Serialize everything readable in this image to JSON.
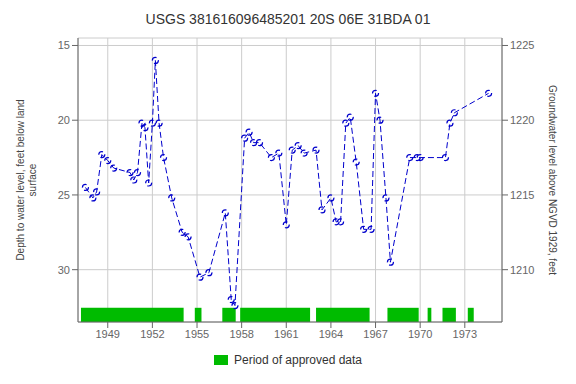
{
  "chart_data": {
    "type": "line",
    "title": "USGS 381616096485201 20S 06E 31BDA 01",
    "ylabel": "Depth to water level, feet below land\nsurface",
    "y2label": "Groundwater level above NGVD 1929, feet",
    "x": [
      1947.5,
      1948.0,
      1948.25,
      1948.6,
      1949.0,
      1949.4,
      1950.5,
      1950.75,
      1951.0,
      1951.3,
      1951.5,
      1951.75,
      1952.0,
      1952.2,
      1952.45,
      1952.75,
      1953.3,
      1954.0,
      1954.4,
      1955.2,
      1955.8,
      1956.9,
      1957.3,
      1957.55,
      1958.2,
      1958.5,
      1958.8,
      1959.2,
      1960.0,
      1960.5,
      1961.0,
      1961.4,
      1961.8,
      1962.2,
      1963.0,
      1963.4,
      1964.0,
      1964.35,
      1964.65,
      1965.0,
      1965.3,
      1965.7,
      1966.2,
      1966.7,
      1967.0,
      1967.3,
      1967.7,
      1968.0,
      1969.3,
      1969.8,
      1970.0,
      1971.7,
      1972.0,
      1972.3,
      1974.6
    ],
    "series": [
      {
        "values": [
          24.5,
          25.2,
          24.8,
          22.3,
          22.7,
          23.2,
          23.5,
          24.0,
          23.5,
          20.2,
          20.5,
          24.2,
          20.2,
          16.0,
          20.2,
          22.5,
          25.2,
          27.5,
          27.8,
          30.5,
          30.2,
          26.2,
          32.0,
          32.4,
          21.2,
          20.8,
          21.5,
          21.5,
          22.5,
          22.2,
          27.0,
          22.0,
          21.7,
          22.2,
          22.0,
          26.0,
          25.2,
          26.8,
          26.8,
          20.2,
          19.8,
          22.8,
          27.3,
          27.3,
          18.2,
          20.0,
          25.2,
          29.5,
          22.5,
          22.5,
          22.5,
          22.5,
          20.2,
          19.5,
          18.2
        ],
        "color": "#0000cc",
        "marker": "o",
        "line_style": "dashed"
      }
    ],
    "xlim": [
      1947.0,
      1975.5
    ],
    "xticks": [
      1949,
      1952,
      1955,
      1958,
      1961,
      1964,
      1967,
      1970,
      1973
    ],
    "ylim": [
      33.5,
      14.5
    ],
    "yticks": [
      15,
      20,
      25,
      30
    ],
    "y2lim": [
      1206.5,
      1225.5
    ],
    "y2ticks": [
      1210,
      1215,
      1220,
      1225
    ],
    "grid": true,
    "legend": "bottom",
    "approved_periods": {
      "name": "Period of approved data",
      "color": "#00bb00",
      "ranges": [
        [
          1947.2,
          1954.1
        ],
        [
          1954.85,
          1955.3
        ],
        [
          1956.7,
          1957.6
        ],
        [
          1957.9,
          1962.6
        ],
        [
          1963.0,
          1966.6
        ],
        [
          1967.8,
          1969.9
        ],
        [
          1970.5,
          1970.75
        ],
        [
          1971.5,
          1972.4
        ],
        [
          1973.2,
          1973.6
        ]
      ]
    }
  }
}
